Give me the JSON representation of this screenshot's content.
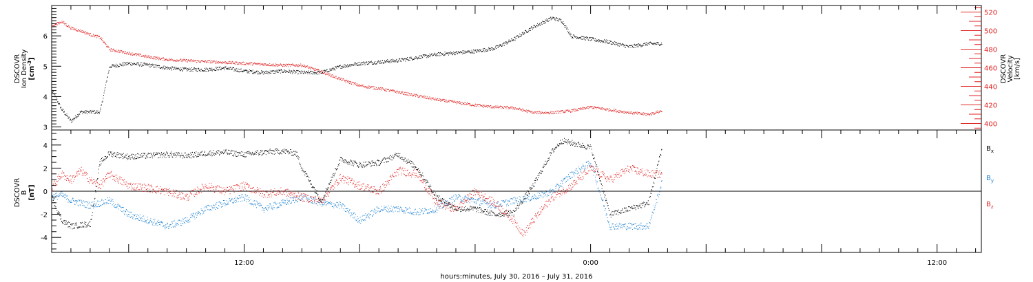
{
  "chart_data": [
    {
      "type": "scatter",
      "panel": "top",
      "left_axis": {
        "label_lines": [
          "DSCOVR",
          "Ion Density"
        ],
        "unit_base": "[cm",
        "unit_sup": "-3",
        "unit_end": "]",
        "ylim": [
          2.9,
          7.0
        ],
        "ticks": [
          "3",
          "4",
          "5",
          "6"
        ]
      },
      "right_axis": {
        "label_lines": [
          "DSCOVR",
          "Velocity",
          "[km/s]"
        ],
        "ylim": [
          393,
          527
        ],
        "ticks": [
          "400",
          "420",
          "440",
          "460",
          "480",
          "500",
          "520"
        ],
        "color": "#e02020"
      },
      "series": [
        {
          "color": "#000000",
          "axis": "left",
          "x": [
            0.0,
            0.5,
            1.0,
            1.5,
            2.0,
            2.5,
            3.0,
            4.0,
            5.0,
            6.0,
            7.0,
            8.0,
            9.0,
            10.0,
            11.0,
            12.0,
            13.0,
            14.0,
            15.0,
            16.0,
            17.0,
            18.0,
            19.0,
            20.0,
            21.0,
            22.0,
            23.0,
            24.0,
            25.0,
            26.0,
            26.5,
            27.0,
            28.0,
            29.0,
            30.0,
            31.0,
            31.7
          ],
          "y": [
            4.2,
            3.6,
            3.2,
            3.5,
            3.5,
            3.5,
            5.0,
            5.1,
            5.05,
            4.95,
            4.9,
            4.9,
            4.95,
            4.85,
            4.8,
            4.85,
            4.8,
            4.8,
            5.0,
            5.1,
            5.15,
            5.2,
            5.3,
            5.4,
            5.45,
            5.5,
            5.6,
            5.9,
            6.3,
            6.6,
            6.5,
            6.0,
            5.9,
            5.8,
            5.65,
            5.75,
            5.75
          ]
        },
        {
          "color": "#e02020",
          "axis": "right",
          "x": [
            0.0,
            0.5,
            1.0,
            1.5,
            2.0,
            2.5,
            3.0,
            4.0,
            5.0,
            6.0,
            7.0,
            8.0,
            9.0,
            10.0,
            11.0,
            12.0,
            13.0,
            14.0,
            15.0,
            16.0,
            17.0,
            18.0,
            19.0,
            20.0,
            21.0,
            22.0,
            23.0,
            24.0,
            25.0,
            26.0,
            27.0,
            28.0,
            29.0,
            30.0,
            31.0,
            31.7
          ],
          "y": [
            505,
            510,
            503,
            500,
            496,
            493,
            480,
            476,
            472,
            469,
            468,
            467,
            466,
            465,
            464,
            463,
            463,
            456,
            448,
            441,
            438,
            434,
            430,
            426,
            423,
            420,
            418,
            417,
            412,
            412,
            414,
            418,
            415,
            412,
            410,
            414
          ]
        }
      ]
    },
    {
      "type": "scatter",
      "panel": "bottom",
      "left_axis": {
        "label_lines": [
          "DSCOVR",
          "B"
        ],
        "unit": "[nT]",
        "ylim": [
          -5.3,
          5.3
        ],
        "ticks": [
          "-4",
          "-2",
          "0",
          "2",
          "4"
        ]
      },
      "zero_line": true,
      "legend": {
        "placement": "right",
        "entries": [
          {
            "base": "B",
            "sub": "x",
            "color": "#000000"
          },
          {
            "base": "B",
            "sub": "y",
            "color": "#1a7fd0"
          },
          {
            "base": "B",
            "sub": "z",
            "color": "#e02020"
          }
        ]
      },
      "series": [
        {
          "name": "Bx",
          "color": "#000000",
          "x": [
            0.0,
            0.5,
            1.0,
            1.5,
            2.0,
            2.5,
            3.0,
            4.0,
            5.0,
            6.0,
            7.0,
            8.0,
            9.0,
            10.0,
            11.0,
            12.0,
            12.7,
            13.0,
            14.0,
            15.0,
            16.0,
            17.0,
            18.0,
            19.0,
            20.0,
            21.0,
            22.0,
            23.0,
            24.0,
            25.0,
            26.0,
            26.5,
            27.0,
            28.0,
            29.0,
            30.0,
            31.0,
            31.7
          ],
          "y": [
            -0.5,
            -2.5,
            -3.0,
            -2.9,
            -2.8,
            2.5,
            3.3,
            3.0,
            3.1,
            3.2,
            3.1,
            3.3,
            3.4,
            3.2,
            3.4,
            3.5,
            3.3,
            2.0,
            -0.8,
            2.8,
            2.3,
            2.5,
            3.2,
            2.0,
            -0.5,
            -1.5,
            -1.5,
            -2.0,
            -1.8,
            0.5,
            3.5,
            4.4,
            4.2,
            3.8,
            -2.0,
            -1.5,
            -1.0,
            3.8
          ]
        },
        {
          "name": "By",
          "color": "#1a7fd0",
          "x": [
            0.0,
            0.5,
            1.0,
            1.5,
            2.0,
            2.5,
            3.0,
            4.0,
            5.0,
            6.0,
            7.0,
            8.0,
            9.0,
            10.0,
            11.0,
            12.0,
            13.0,
            14.0,
            15.0,
            16.0,
            17.0,
            18.0,
            19.0,
            20.0,
            21.0,
            22.0,
            23.0,
            24.0,
            25.0,
            26.0,
            27.0,
            28.0,
            29.0,
            30.0,
            31.0,
            31.7
          ],
          "y": [
            -0.5,
            -0.3,
            -0.8,
            -1.0,
            -1.2,
            -1.0,
            -0.8,
            -2.0,
            -2.5,
            -3.0,
            -2.5,
            -1.5,
            -1.0,
            -0.5,
            -1.5,
            -1.0,
            -0.5,
            -1.0,
            -1.2,
            -2.5,
            -1.5,
            -1.5,
            -1.8,
            -1.5,
            -0.5,
            -0.8,
            -1.2,
            -0.8,
            -0.5,
            0.0,
            1.5,
            2.5,
            -3.0,
            -3.0,
            -3.0,
            0.8
          ]
        },
        {
          "name": "Bz",
          "color": "#e02020",
          "x": [
            0.0,
            0.5,
            1.0,
            1.5,
            2.0,
            2.5,
            3.0,
            4.0,
            5.0,
            6.0,
            7.0,
            8.0,
            9.0,
            10.0,
            11.0,
            12.0,
            13.0,
            14.0,
            15.0,
            16.0,
            17.0,
            18.0,
            19.0,
            20.0,
            21.0,
            22.0,
            23.0,
            24.0,
            24.5,
            25.0,
            26.0,
            27.0,
            28.0,
            29.0,
            30.0,
            31.0,
            31.7
          ],
          "y": [
            0.3,
            1.5,
            1.0,
            1.8,
            1.0,
            0.5,
            1.5,
            0.5,
            0.3,
            0.0,
            -0.5,
            0.5,
            0.0,
            0.5,
            -0.2,
            0.0,
            -0.5,
            -0.8,
            1.2,
            0.5,
            0.0,
            1.8,
            1.5,
            -1.0,
            -1.5,
            0.0,
            -1.0,
            -2.5,
            -3.7,
            -2.5,
            -0.5,
            0.5,
            2.0,
            1.0,
            2.0,
            1.5,
            1.5
          ]
        }
      ]
    }
  ],
  "x_axis": {
    "range_hours": [
      0,
      48.3
    ],
    "labels": [
      {
        "hours": 10.0,
        "text": "12:00"
      },
      {
        "hours": 28.0,
        "text": "0:00"
      },
      {
        "hours": 46.0,
        "text": "12:00"
      }
    ],
    "title": "hours:minutes, July 30, 2016 – July 31, 2016"
  }
}
